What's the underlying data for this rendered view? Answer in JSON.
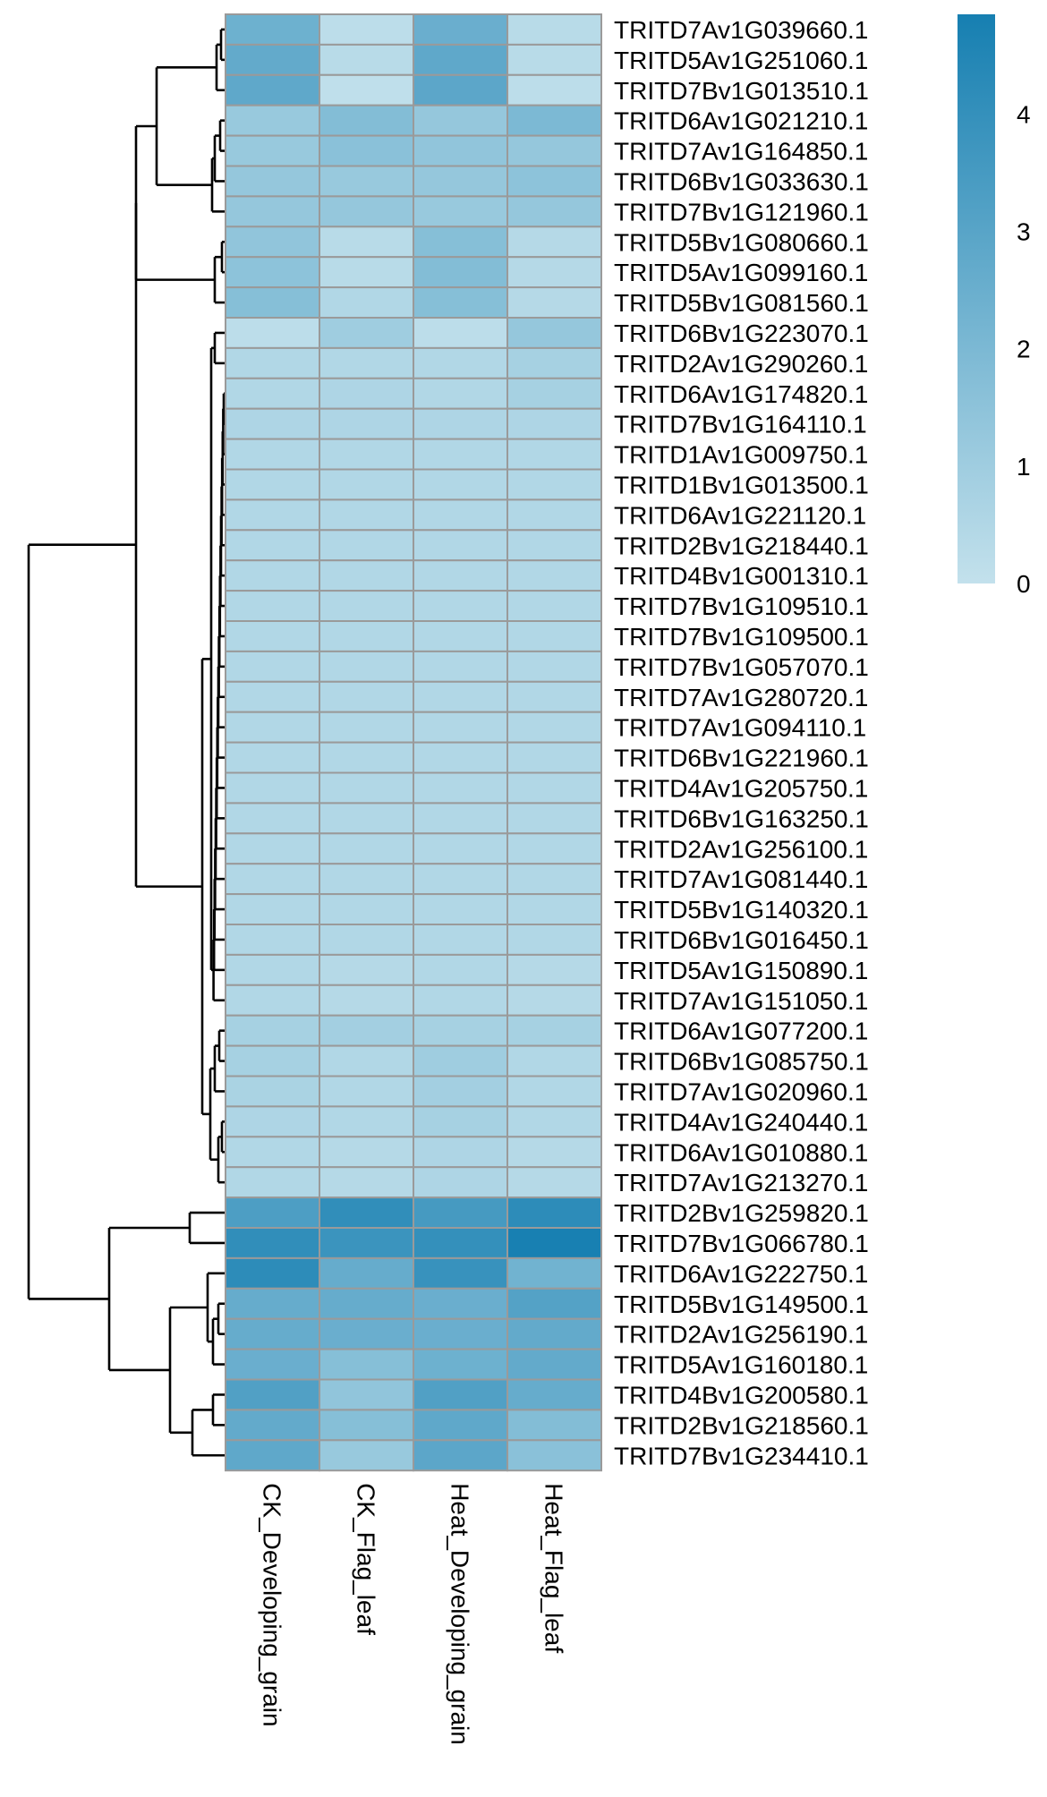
{
  "chart_data": {
    "type": "heatmap",
    "columns": [
      "CK_Developing_grain",
      "CK_Flag_leaf",
      "Heat_Developing_grain",
      "Heat_Flag_leaf"
    ],
    "rows": [
      "TRITD7Av1G039660.1",
      "TRITD5Av1G251060.1",
      "TRITD7Bv1G013510.1",
      "TRITD6Av1G021210.1",
      "TRITD7Av1G164850.1",
      "TRITD6Bv1G033630.1",
      "TRITD7Bv1G121960.1",
      "TRITD5Bv1G080660.1",
      "TRITD5Av1G099160.1",
      "TRITD5Bv1G081560.1",
      "TRITD6Bv1G223070.1",
      "TRITD2Av1G290260.1",
      "TRITD6Av1G174820.1",
      "TRITD7Bv1G164110.1",
      "TRITD1Av1G009750.1",
      "TRITD1Bv1G013500.1",
      "TRITD6Av1G221120.1",
      "TRITD2Bv1G218440.1",
      "TRITD4Bv1G001310.1",
      "TRITD7Bv1G109510.1",
      "TRITD7Bv1G109500.1",
      "TRITD7Bv1G057070.1",
      "TRITD7Av1G280720.1",
      "TRITD7Av1G094110.1",
      "TRITD6Bv1G221960.1",
      "TRITD4Av1G205750.1",
      "TRITD6Bv1G163250.1",
      "TRITD2Av1G256100.1",
      "TRITD7Av1G081440.1",
      "TRITD5Bv1G140320.1",
      "TRITD6Bv1G016450.1",
      "TRITD5Av1G150890.1",
      "TRITD7Av1G151050.1",
      "TRITD6Av1G077200.1",
      "TRITD6Bv1G085750.1",
      "TRITD7Av1G020960.1",
      "TRITD4Av1G240440.1",
      "TRITD6Av1G010880.1",
      "TRITD7Av1G213270.1",
      "TRITD2Bv1G259820.1",
      "TRITD7Bv1G066780.1",
      "TRITD6Av1G222750.1",
      "TRITD5Bv1G149500.1",
      "TRITD2Av1G256190.1",
      "TRITD5Av1G160180.1",
      "TRITD4Bv1G200580.1",
      "TRITD2Bv1G218560.1",
      "TRITD7Bv1G234410.1"
    ],
    "values": [
      [
        2.4,
        0.2,
        2.5,
        0.3
      ],
      [
        2.7,
        0.3,
        2.8,
        0.3
      ],
      [
        2.8,
        0.1,
        2.9,
        0.2
      ],
      [
        1.2,
        1.8,
        1.3,
        2.0
      ],
      [
        1.2,
        1.6,
        1.4,
        1.3
      ],
      [
        1.3,
        1.2,
        1.3,
        1.5
      ],
      [
        1.3,
        1.3,
        1.2,
        1.3
      ],
      [
        1.4,
        0.3,
        1.7,
        0.4
      ],
      [
        1.5,
        0.3,
        1.8,
        0.4
      ],
      [
        1.7,
        0.5,
        1.7,
        0.4
      ],
      [
        0.2,
        1.0,
        0.2,
        1.3
      ],
      [
        0.5,
        0.5,
        0.5,
        0.8
      ],
      [
        0.5,
        0.6,
        0.5,
        0.8
      ],
      [
        0.6,
        0.6,
        0.6,
        0.6
      ],
      [
        0.5,
        0.5,
        0.5,
        0.5
      ],
      [
        0.5,
        0.5,
        0.5,
        0.5
      ],
      [
        0.5,
        0.5,
        0.5,
        0.5
      ],
      [
        0.5,
        0.5,
        0.5,
        0.5
      ],
      [
        0.5,
        0.5,
        0.5,
        0.5
      ],
      [
        0.5,
        0.5,
        0.5,
        0.5
      ],
      [
        0.5,
        0.5,
        0.5,
        0.5
      ],
      [
        0.5,
        0.5,
        0.5,
        0.5
      ],
      [
        0.5,
        0.5,
        0.5,
        0.5
      ],
      [
        0.5,
        0.5,
        0.5,
        0.5
      ],
      [
        0.5,
        0.5,
        0.5,
        0.5
      ],
      [
        0.5,
        0.5,
        0.5,
        0.5
      ],
      [
        0.5,
        0.5,
        0.5,
        0.5
      ],
      [
        0.5,
        0.5,
        0.5,
        0.5
      ],
      [
        0.5,
        0.5,
        0.5,
        0.5
      ],
      [
        0.5,
        0.5,
        0.5,
        0.5
      ],
      [
        0.5,
        0.5,
        0.5,
        0.5
      ],
      [
        0.5,
        0.4,
        0.5,
        0.4
      ],
      [
        0.5,
        0.4,
        0.5,
        0.4
      ],
      [
        0.8,
        0.9,
        0.8,
        0.8
      ],
      [
        0.8,
        0.5,
        1.0,
        0.5
      ],
      [
        0.7,
        0.5,
        0.9,
        0.5
      ],
      [
        0.6,
        0.5,
        0.8,
        0.5
      ],
      [
        0.5,
        0.4,
        0.6,
        0.4
      ],
      [
        0.5,
        0.4,
        0.6,
        0.4
      ],
      [
        3.3,
        4.1,
        3.5,
        4.2
      ],
      [
        4.1,
        3.8,
        4.0,
        4.8
      ],
      [
        4.2,
        2.6,
        3.9,
        2.3
      ],
      [
        2.6,
        2.6,
        2.5,
        3.1
      ],
      [
        2.6,
        2.5,
        2.5,
        2.7
      ],
      [
        2.5,
        1.7,
        2.4,
        2.7
      ],
      [
        3.2,
        1.4,
        3.2,
        2.6
      ],
      [
        2.7,
        1.7,
        2.8,
        1.8
      ],
      [
        2.8,
        1.2,
        2.9,
        1.6
      ]
    ],
    "legend": {
      "min": 0,
      "max": 4.85,
      "ticks": [
        0,
        1,
        2,
        3,
        4
      ],
      "color_low": "#c3e1ec",
      "color_high": "#167fb1"
    },
    "cell_border_color": "#9a9a9a",
    "dendrogram_color": "#000000",
    "row_dendrogram_order_note": ""
  }
}
